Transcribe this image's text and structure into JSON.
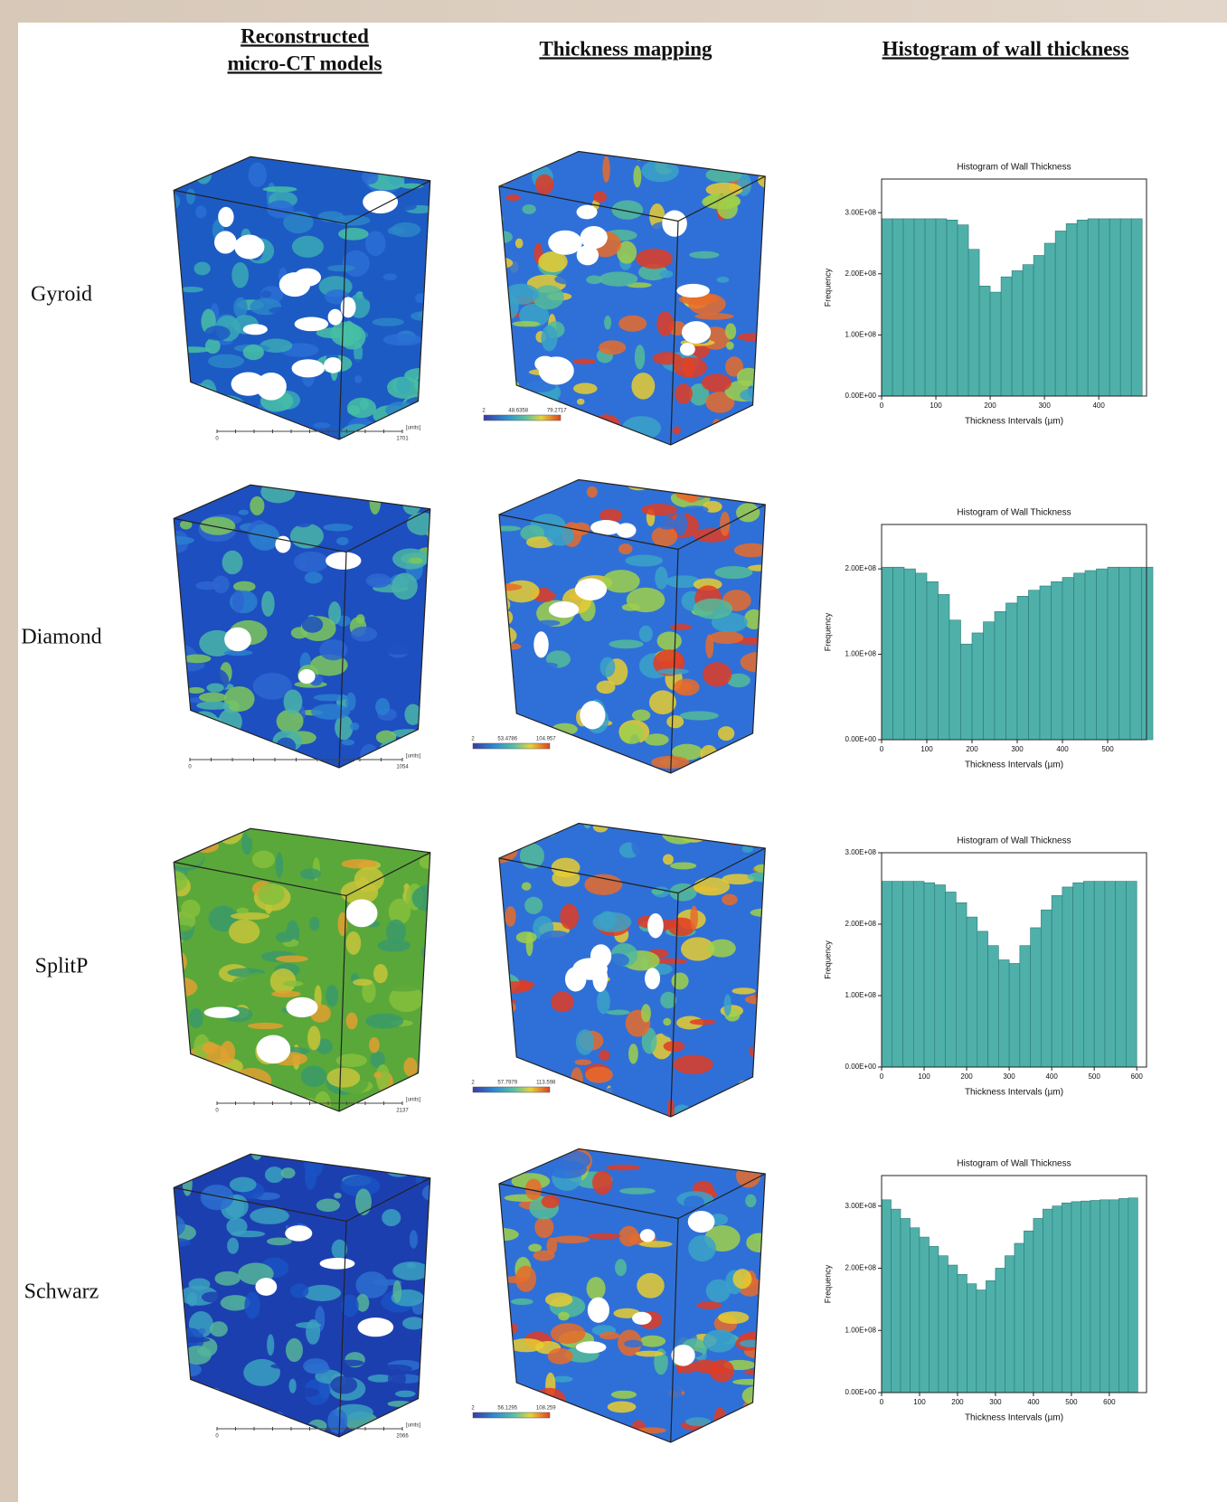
{
  "headers": [
    [
      "Reconstructed",
      "micro-CT models"
    ],
    [
      "Thickness mapping"
    ],
    [
      "Histogram of wall thickness"
    ]
  ],
  "rows": [
    {
      "label": "Gyroid",
      "scale_bar": [
        "0",
        "1701",
        "[units]"
      ],
      "colorbar": [
        "2",
        "48.6358",
        "79.2717"
      ]
    },
    {
      "label": "Diamond",
      "scale_bar": [
        "0",
        "1054",
        "[units]"
      ],
      "colorbar": [
        "2",
        "53.4786",
        "104.957"
      ]
    },
    {
      "label": "SplitP",
      "scale_bar": [
        "0",
        "2137",
        "[units]"
      ],
      "colorbar": [
        "2",
        "57.7979",
        "113.598"
      ]
    },
    {
      "label": "Schwarz",
      "scale_bar": [
        "0",
        "2066",
        "[units]"
      ],
      "colorbar": [
        "2",
        "56.1295",
        "108.259"
      ]
    }
  ],
  "chart_data": [
    {
      "type": "histogram",
      "title": "Histogram of Wall Thickness",
      "xlabel": "Thickness Intervals (µm)",
      "ylabel": "Frequency",
      "color": "#4fb0aa",
      "bins": [
        0,
        20,
        40,
        60,
        80,
        100,
        120,
        140,
        160,
        180,
        200,
        220,
        240,
        260,
        280,
        300,
        320,
        340,
        360,
        380,
        400,
        420,
        440,
        460,
        480
      ],
      "values": [
        290000000,
        290000000,
        290000000,
        290000000,
        290000000,
        290000000,
        288000000,
        280000000,
        240000000,
        180000000,
        170000000,
        195000000,
        205000000,
        215000000,
        230000000,
        250000000,
        270000000,
        282000000,
        288000000,
        290000000,
        290000000,
        290000000,
        290000000,
        290000000
      ],
      "xlim": [
        0,
        488
      ],
      "xticks": [
        0,
        100,
        200,
        300,
        400
      ],
      "ylim": [
        0,
        355000000
      ],
      "yticks": [
        {
          "value": 0,
          "label": "0.00E+00"
        },
        {
          "value": 100000000,
          "label": "1.00E+08"
        },
        {
          "value": 200000000,
          "label": "2.00E+08"
        },
        {
          "value": 300000000,
          "label": "3.00E+08"
        }
      ]
    },
    {
      "type": "histogram",
      "title": "Histogram of Wall Thickness",
      "xlabel": "Thickness Intervals (µm)",
      "ylabel": "Frequency",
      "color": "#4fb0aa",
      "bins": [
        0,
        25,
        50,
        75,
        100,
        125,
        150,
        175,
        200,
        225,
        250,
        275,
        300,
        325,
        350,
        375,
        400,
        425,
        450,
        475,
        500,
        525,
        550,
        575,
        600
      ],
      "values": [
        202000000,
        202000000,
        200000000,
        195000000,
        185000000,
        170000000,
        140000000,
        112000000,
        125000000,
        138000000,
        150000000,
        160000000,
        168000000,
        175000000,
        180000000,
        185000000,
        190000000,
        195000000,
        198000000,
        200000000,
        202000000,
        202000000,
        202000000,
        202000000
      ],
      "xlim": [
        0,
        586
      ],
      "xticks": [
        0,
        100,
        200,
        300,
        400,
        500
      ],
      "ylim": [
        0,
        252000000
      ],
      "yticks": [
        {
          "value": 0,
          "label": "0.00E+00"
        },
        {
          "value": 100000000,
          "label": "1.00E+08"
        },
        {
          "value": 200000000,
          "label": "2.00E+08"
        }
      ]
    },
    {
      "type": "histogram",
      "title": "Histogram of Wall Thickness",
      "xlabel": "Thickness Intervals (µm)",
      "ylabel": "Frequency",
      "color": "#4fb0aa",
      "bins": [
        0,
        25,
        50,
        75,
        100,
        125,
        150,
        175,
        200,
        225,
        250,
        275,
        300,
        325,
        350,
        375,
        400,
        425,
        450,
        475,
        500,
        525,
        550,
        575,
        600
      ],
      "values": [
        260000000,
        260000000,
        260000000,
        260000000,
        258000000,
        255000000,
        245000000,
        230000000,
        210000000,
        190000000,
        170000000,
        150000000,
        145000000,
        170000000,
        195000000,
        220000000,
        240000000,
        252000000,
        258000000,
        260000000,
        260000000,
        260000000,
        260000000,
        260000000
      ],
      "xlim": [
        0,
        623
      ],
      "xticks": [
        0,
        100,
        200,
        300,
        400,
        500,
        600
      ],
      "ylim": [
        0,
        300000000
      ],
      "yticks": [
        {
          "value": 0,
          "label": "0.00E+00"
        },
        {
          "value": 100000000,
          "label": "1.00E+08"
        },
        {
          "value": 200000000,
          "label": "2.00E+08"
        },
        {
          "value": 300000000,
          "label": "3.00E+08"
        }
      ]
    },
    {
      "type": "histogram",
      "title": "Histogram of Wall Thickness",
      "xlabel": "Thickness Intervals (µm)",
      "ylabel": "Frequency",
      "color": "#4fb0aa",
      "bins": [
        0,
        25,
        50,
        75,
        100,
        125,
        150,
        175,
        200,
        225,
        250,
        275,
        300,
        325,
        350,
        375,
        400,
        425,
        450,
        475,
        500,
        525,
        550,
        575,
        600,
        625,
        650,
        675
      ],
      "values": [
        310000000,
        295000000,
        280000000,
        265000000,
        250000000,
        235000000,
        220000000,
        205000000,
        190000000,
        175000000,
        165000000,
        180000000,
        200000000,
        220000000,
        240000000,
        260000000,
        280000000,
        295000000,
        300000000,
        305000000,
        307000000,
        308000000,
        309000000,
        310000000,
        310000000,
        312000000,
        313000000
      ],
      "xlim": [
        0,
        698
      ],
      "xticks": [
        0,
        100,
        200,
        300,
        400,
        500,
        600
      ],
      "ylim": [
        0,
        349000000
      ],
      "yticks": [
        {
          "value": 0,
          "label": "0.00E+00"
        },
        {
          "value": 100000000,
          "label": "1.00E+08"
        },
        {
          "value": 200000000,
          "label": "2.00E+08"
        },
        {
          "value": 300000000,
          "label": "3.00E+08"
        }
      ]
    }
  ]
}
